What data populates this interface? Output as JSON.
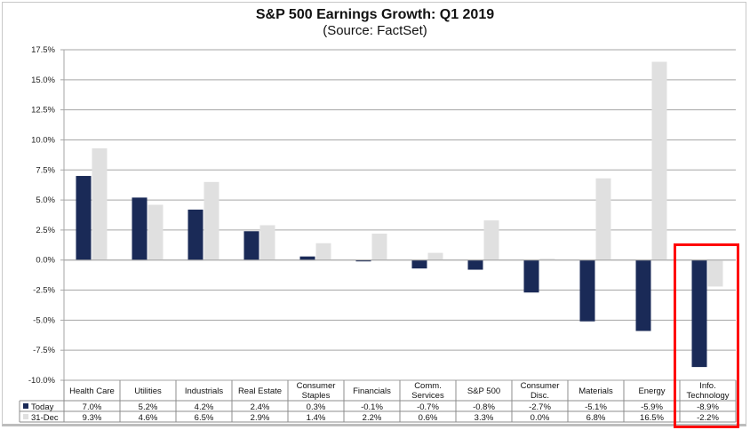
{
  "chart_data": {
    "type": "bar",
    "title": "S&P 500 Earnings Growth: Q1 2019",
    "subtitle": "(Source: FactSet)",
    "xlabel": "",
    "ylabel": "",
    "ylim": [
      -10.0,
      17.5
    ],
    "yticks": [
      17.5,
      15.0,
      12.5,
      10.0,
      7.5,
      5.0,
      2.5,
      0.0,
      -2.5,
      -5.0,
      -7.5,
      -10.0
    ],
    "ytick_labels": [
      "17.5%",
      "15.0%",
      "12.5%",
      "10.0%",
      "7.5%",
      "5.0%",
      "2.5%",
      "0.0%",
      "-2.5%",
      "-5.0%",
      "-7.5%",
      "-10.0%"
    ],
    "grid": true,
    "legend": "data-table-left",
    "categories": [
      [
        "Health Care"
      ],
      [
        "Utilities"
      ],
      [
        "Industrials"
      ],
      [
        "Real Estate"
      ],
      [
        "Consumer",
        "Staples"
      ],
      [
        "Financials"
      ],
      [
        "Comm.",
        "Services"
      ],
      [
        "S&P 500"
      ],
      [
        "Consumer",
        "Disc."
      ],
      [
        "Materials"
      ],
      [
        "Energy"
      ],
      [
        "Info.",
        "Technology"
      ]
    ],
    "series": [
      {
        "name": "Today",
        "color": "#1a2a57",
        "values": [
          7.0,
          5.2,
          4.2,
          2.4,
          0.3,
          -0.1,
          -0.7,
          -0.8,
          -2.7,
          -5.1,
          -5.9,
          -8.9
        ],
        "labels": [
          "7.0%",
          "5.2%",
          "4.2%",
          "2.4%",
          "0.3%",
          "-0.1%",
          "-0.7%",
          "-0.8%",
          "-2.7%",
          "-5.1%",
          "-5.9%",
          "-8.9%"
        ]
      },
      {
        "name": "31-Dec",
        "color": "#e0e0e0",
        "values": [
          9.3,
          4.6,
          6.5,
          2.9,
          1.4,
          2.2,
          0.6,
          3.3,
          0.0,
          6.8,
          16.5,
          -2.2
        ],
        "labels": [
          "9.3%",
          "4.6%",
          "6.5%",
          "2.9%",
          "1.4%",
          "2.2%",
          "0.6%",
          "3.3%",
          "0.0%",
          "6.8%",
          "16.5%",
          "-2.2%"
        ]
      }
    ],
    "annotations": [
      {
        "type": "highlight-box",
        "category": "Info. Technology",
        "color": "#ff0000"
      }
    ]
  }
}
